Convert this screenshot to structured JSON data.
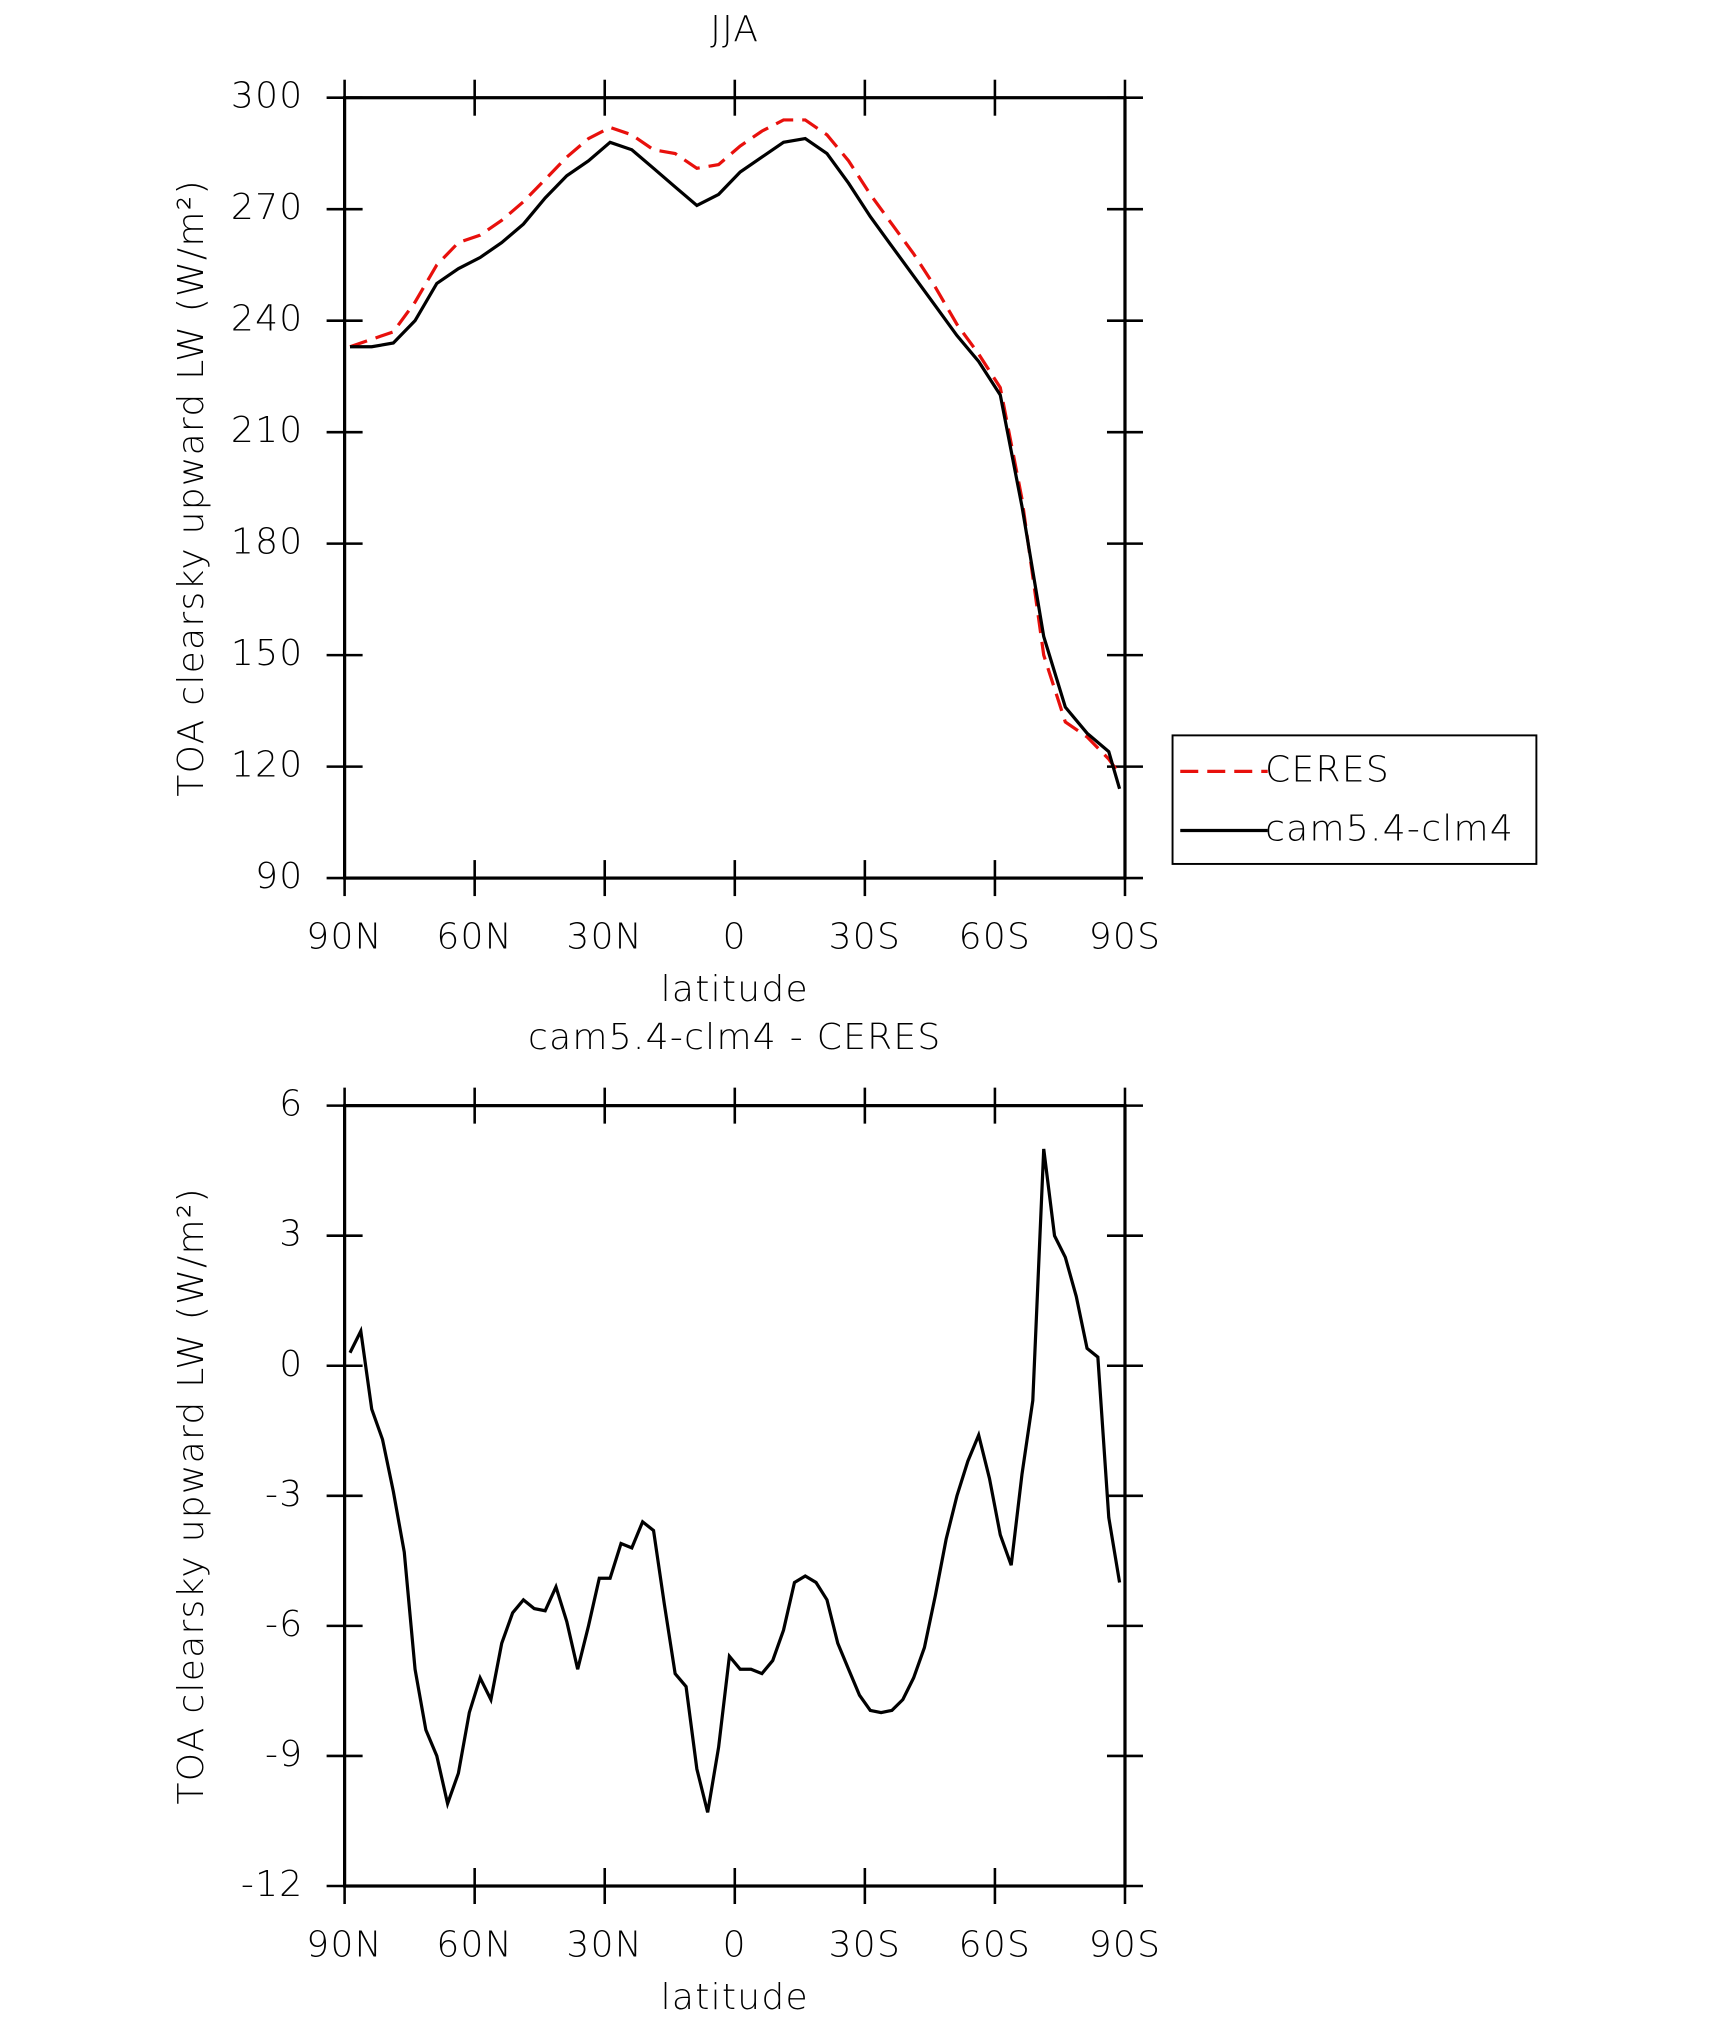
{
  "chart_data": [
    {
      "type": "line",
      "title": "JJA",
      "xlabel": "latitude",
      "ylabel": "TOA clearsky upward LW (W/m²)",
      "xlim": [
        90,
        -90
      ],
      "xticks": [
        {
          "value": 90,
          "label": "90N"
        },
        {
          "value": 60,
          "label": "60N"
        },
        {
          "value": 30,
          "label": "30N"
        },
        0,
        {
          "value": -30,
          "label": "30S"
        },
        {
          "value": -60,
          "label": "60S"
        },
        {
          "value": -90,
          "label": "90S"
        }
      ],
      "ylim": [
        90,
        300
      ],
      "yticks": [
        90,
        120,
        150,
        180,
        210,
        240,
        270,
        300
      ],
      "legend": "right",
      "x": [
        88.75,
        83.75,
        78.75,
        73.75,
        68.75,
        63.75,
        58.75,
        53.75,
        48.75,
        43.75,
        38.75,
        33.75,
        28.75,
        23.75,
        18.75,
        13.75,
        8.75,
        3.75,
        -1.25,
        -6.25,
        -11.25,
        -16.25,
        -21.25,
        -26.25,
        -31.25,
        -36.25,
        -41.25,
        -46.25,
        -51.25,
        -56.25,
        -61.25,
        -66.25,
        -71.25,
        -76.25,
        -81.25,
        -86.25,
        -88.75
      ],
      "series": [
        {
          "name": "CERES",
          "color": "#e8100c",
          "dash": true,
          "values": [
            233,
            235,
            237,
            245,
            255,
            261,
            263,
            267,
            272,
            278,
            284,
            289,
            292,
            290,
            286,
            285,
            281,
            282,
            287,
            291,
            294,
            294,
            290,
            283,
            274,
            266,
            258,
            249,
            239,
            231,
            222,
            192,
            150,
            132,
            128,
            122,
            118
          ]
        },
        {
          "name": "cam5.4-clm4",
          "color": "#000000",
          "dash": false,
          "values": [
            233,
            233,
            234,
            240,
            250,
            254,
            257,
            261,
            266,
            273,
            279,
            283,
            288,
            286,
            281,
            276,
            271,
            274,
            280,
            284,
            288,
            289,
            285,
            277,
            268,
            260,
            252,
            244,
            236,
            229,
            220,
            190,
            155,
            136,
            129,
            124,
            114
          ]
        }
      ]
    },
    {
      "type": "line",
      "title": "cam5.4-clm4 - CERES",
      "xlabel": "latitude",
      "ylabel": "TOA clearsky upward LW (W/m²)",
      "xlim": [
        90,
        -90
      ],
      "xticks": [
        {
          "value": 90,
          "label": "90N"
        },
        {
          "value": 60,
          "label": "60N"
        },
        {
          "value": 30,
          "label": "30N"
        },
        0,
        {
          "value": -30,
          "label": "30S"
        },
        {
          "value": -60,
          "label": "60S"
        },
        {
          "value": -90,
          "label": "90S"
        }
      ],
      "ylim": [
        -12,
        6
      ],
      "yticks": [
        -12,
        -9,
        -6,
        -3,
        0,
        3,
        6
      ],
      "x": [
        88.75,
        86.25,
        83.75,
        81.25,
        78.75,
        76.25,
        73.75,
        71.25,
        68.75,
        66.25,
        63.75,
        61.25,
        58.75,
        56.25,
        53.75,
        51.25,
        48.75,
        46.25,
        43.75,
        41.25,
        38.75,
        36.25,
        33.75,
        31.25,
        28.75,
        26.25,
        23.75,
        21.25,
        18.75,
        16.25,
        13.75,
        11.25,
        8.75,
        6.25,
        3.75,
        1.25,
        -1.25,
        -3.75,
        -6.25,
        -8.75,
        -11.25,
        -13.75,
        -16.25,
        -18.75,
        -21.25,
        -23.75,
        -26.25,
        -28.75,
        -31.25,
        -33.75,
        -36.25,
        -38.75,
        -41.25,
        -43.75,
        -46.25,
        -48.75,
        -51.25,
        -53.75,
        -56.25,
        -58.75,
        -61.25,
        -63.75,
        -66.25,
        -68.75,
        -71.25,
        -73.75,
        -76.25,
        -78.75,
        -81.25,
        -83.75,
        -86.25,
        -88.75
      ],
      "color": "#000000",
      "values": [
        0.3,
        0.8,
        -1,
        -1.7,
        -2.9,
        -4.3,
        -7,
        -8.4,
        -9,
        -10.1,
        -9.4,
        -8,
        -7.2,
        -7.7,
        -6.4,
        -5.7,
        -5.4,
        -5.6,
        -5.65,
        -5.1,
        -5.9,
        -7,
        -6,
        -4.9,
        -4.9,
        -4.1,
        -4.2,
        -3.6,
        -3.8,
        -5.5,
        -7.1,
        -7.4,
        -9.3,
        -10.3,
        -8.8,
        -6.7,
        -7,
        -7,
        -7.1,
        -6.8,
        -6.1,
        -5,
        -4.85,
        -5,
        -5.4,
        -6.4,
        -7,
        -7.6,
        -7.95,
        -8,
        -7.95,
        -7.7,
        -7.2,
        -6.5,
        -5.3,
        -4,
        -3,
        -2.2,
        -1.6,
        -2.6,
        -3.9,
        -4.6,
        -2.5,
        -0.8,
        5,
        3,
        2.5,
        1.6,
        0.4,
        0.2,
        -3.5,
        -5
      ]
    }
  ]
}
